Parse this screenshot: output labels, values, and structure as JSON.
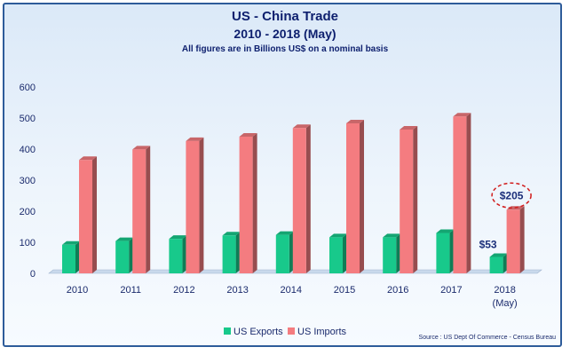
{
  "chart_data": {
    "type": "bar",
    "title": "US - China Trade",
    "subtitle": "2010 - 2018 (May)",
    "note": "All figures are in Billions US$ on a nominal basis",
    "categories": [
      "2010",
      "2011",
      "2012",
      "2013",
      "2014",
      "2015",
      "2016",
      "2017",
      "2018\n(May)"
    ],
    "series": [
      {
        "name": "US Exports",
        "color": "#18c98b",
        "values": [
          92,
          104,
          111,
          122,
          124,
          116,
          116,
          130,
          53
        ]
      },
      {
        "name": "US Imports",
        "color": "#f47c80",
        "values": [
          365,
          399,
          426,
          440,
          468,
          483,
          463,
          505,
          205
        ]
      }
    ],
    "ylim": [
      0,
      600
    ],
    "yticks": [
      0,
      100,
      200,
      300,
      400,
      500,
      600
    ],
    "grid": false,
    "legend_position": "bottom",
    "annotations": [
      {
        "text": "$53",
        "series": 0,
        "index": 8
      },
      {
        "text": "$205",
        "series": 1,
        "index": 8,
        "circled": true
      }
    ],
    "source": "Source : US Dept Of Commerce - Census Bureau"
  }
}
